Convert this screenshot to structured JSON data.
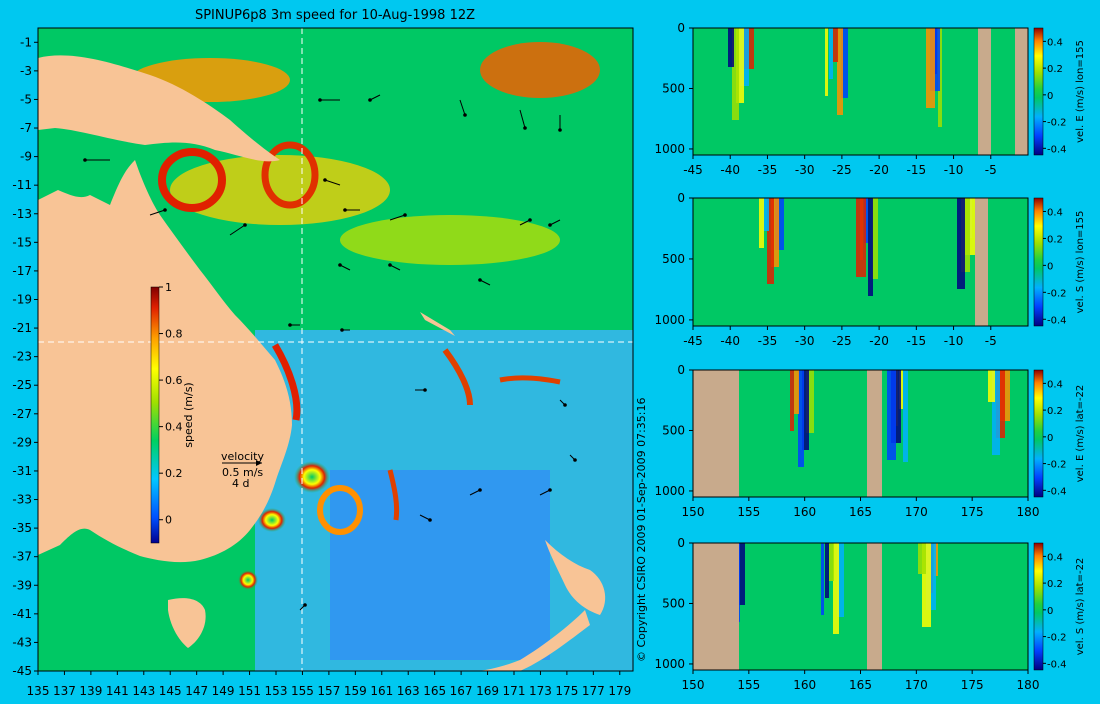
{
  "title": "SPINUP6p8 3m speed for 10-Aug-1998 12Z",
  "copyright": "© Copyright CSIRO 2009   01-Sep-2009 07:35:16",
  "colors": {
    "background": "#00c8f0",
    "land": "#f8c496",
    "section_land": "#c8aa8c"
  },
  "chart_data": [
    {
      "type": "heatmap",
      "name": "map",
      "title": "SPINUP6p8 3m speed for 10-Aug-1998 12Z",
      "x_ticks": [
        "135",
        "137",
        "139",
        "141",
        "143",
        "145",
        "147",
        "149",
        "151",
        "153",
        "155",
        "157",
        "159",
        "161",
        "163",
        "165",
        "167",
        "169",
        "171",
        "173",
        "175",
        "177",
        "179"
      ],
      "y_ticks": [
        "-1",
        "-3",
        "-5",
        "-7",
        "-9",
        "-11",
        "-13",
        "-15",
        "-17",
        "-19",
        "-21",
        "-23",
        "-25",
        "-27",
        "-29",
        "-31",
        "-33",
        "-35",
        "-37",
        "-39",
        "-41",
        "-43",
        "-45"
      ],
      "xlim": [
        135,
        180
      ],
      "ylim": [
        -45,
        0
      ],
      "section_lines": {
        "lon": 155,
        "lat": -22
      },
      "colorbar": {
        "label": "speed (m/s)",
        "ticks": [
          "1",
          "0.8",
          "0.6",
          "0.4",
          "0.2",
          "0"
        ],
        "range": [
          -0.1,
          1
        ]
      },
      "velocity_key": {
        "title": "velocity",
        "speed": "0.5 m/s",
        "duration": "4 d"
      }
    },
    {
      "type": "heatmap",
      "name": "section-1",
      "x_ticks": [
        "-45",
        "-40",
        "-35",
        "-30",
        "-25",
        "-20",
        "-15",
        "-10",
        "-5"
      ],
      "y_ticks": [
        "0",
        "500",
        "1000"
      ],
      "xlim": [
        -45,
        0
      ],
      "ylim": [
        1050,
        0
      ],
      "colorbar": {
        "label": "vel. E (m/s) lon=155",
        "ticks": [
          "0.4",
          "0.2",
          "0",
          "-0.2",
          "-0.4"
        ],
        "range": [
          -0.45,
          0.5
        ]
      }
    },
    {
      "type": "heatmap",
      "name": "section-2",
      "x_ticks": [
        "-45",
        "-40",
        "-35",
        "-30",
        "-25",
        "-20",
        "-15",
        "-10",
        "-5"
      ],
      "y_ticks": [
        "0",
        "500",
        "1000"
      ],
      "xlim": [
        -45,
        0
      ],
      "ylim": [
        1050,
        0
      ],
      "colorbar": {
        "label": "vel. S (m/s) lon=155",
        "ticks": [
          "0.4",
          "0.2",
          "0",
          "-0.2",
          "-0.4"
        ],
        "range": [
          -0.45,
          0.5
        ]
      }
    },
    {
      "type": "heatmap",
      "name": "section-3",
      "x_ticks": [
        "150",
        "155",
        "160",
        "165",
        "170",
        "175",
        "180"
      ],
      "y_ticks": [
        "0",
        "500",
        "1000"
      ],
      "xlim": [
        150,
        180
      ],
      "ylim": [
        1050,
        0
      ],
      "colorbar": {
        "label": "vel. E (m/s) lat=-22",
        "ticks": [
          "0.4",
          "0.2",
          "0",
          "-0.2",
          "-0.4"
        ],
        "range": [
          -0.45,
          0.5
        ]
      }
    },
    {
      "type": "heatmap",
      "name": "section-4",
      "x_ticks": [
        "150",
        "155",
        "160",
        "165",
        "170",
        "175",
        "180"
      ],
      "y_ticks": [
        "0",
        "500",
        "1000"
      ],
      "xlim": [
        150,
        180
      ],
      "ylim": [
        1050,
        0
      ],
      "colorbar": {
        "label": "vel. S (m/s) lat=-22",
        "ticks": [
          "0.4",
          "0.2",
          "0",
          "-0.2",
          "-0.4"
        ],
        "range": [
          -0.45,
          0.5
        ]
      }
    }
  ]
}
